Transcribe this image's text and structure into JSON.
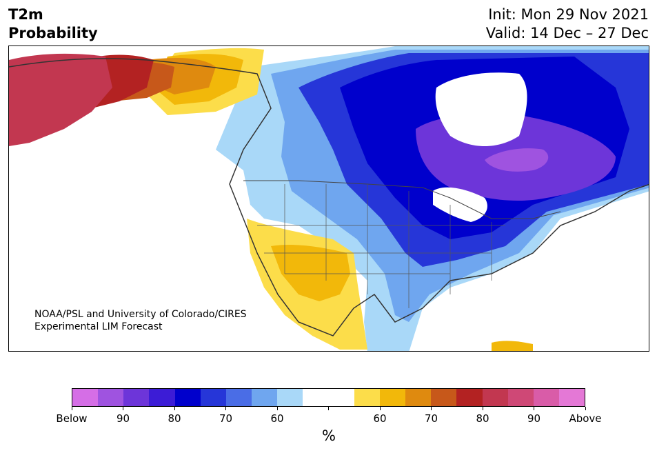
{
  "header": {
    "title_line1": "T2m",
    "title_line2": "Probability",
    "init": "Init: Mon 29 Nov 2021",
    "valid": "Valid: 14 Dec – 27 Dec"
  },
  "map": {
    "credit_line1": "NOAA/PSL and University of Colorado/CIRES",
    "credit_line2": "Experimental LIM Forecast"
  },
  "colorbar": {
    "colors": [
      "#d56ee6",
      "#9f53e0",
      "#6d35d9",
      "#3c1cd6",
      "#0000cc",
      "#2636d8",
      "#4a6de6",
      "#6fa6ef",
      "#a9d8f8",
      "#ffffff",
      "#ffffff",
      "#fcdd4a",
      "#f2b80a",
      "#df8a0f",
      "#c7581a",
      "#b32222",
      "#c23750",
      "#cf4876",
      "#d95ca8",
      "#e478d6"
    ],
    "tick_labels": [
      "Below",
      "90",
      "80",
      "70",
      "60",
      "",
      "60",
      "70",
      "80",
      "90",
      "Above"
    ],
    "unit": "%"
  }
}
